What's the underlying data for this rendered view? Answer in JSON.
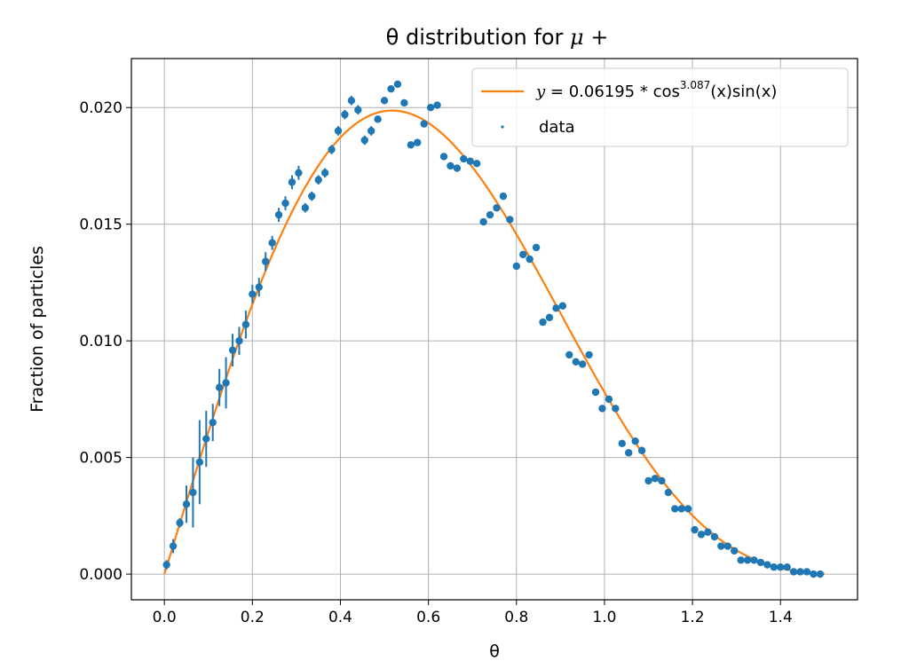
{
  "chart_data": {
    "type": "scatter",
    "title": "θ distribution for ",
    "title_symbol": "μ +",
    "xlabel": "θ",
    "ylabel": "Fraction of particles",
    "xlim": [
      -0.075,
      1.575
    ],
    "ylim": [
      -0.0011,
      0.0221
    ],
    "grid": true,
    "legend_position": "top-right",
    "xticks": [
      "0.0",
      "0.2",
      "0.4",
      "0.6",
      "0.8",
      "1.0",
      "1.2",
      "1.4"
    ],
    "yticks": [
      "0.000",
      "0.005",
      "0.010",
      "0.015",
      "0.020"
    ],
    "fit": {
      "name": "fit",
      "amplitude": 0.06195,
      "exponent": 3.087,
      "x_range": [
        0,
        1.5
      ],
      "color": "#ff7f0e",
      "legend_prefix": "y",
      "legend_eq": " = 0.06195 * cos",
      "legend_exp": "3.087",
      "legend_tail": "(x)sin(x)"
    },
    "series": [
      {
        "name": "data",
        "color": "#1f77b4",
        "x": [
          0.005,
          0.02,
          0.035,
          0.05,
          0.065,
          0.08,
          0.095,
          0.11,
          0.125,
          0.14,
          0.155,
          0.17,
          0.185,
          0.2,
          0.215,
          0.23,
          0.245,
          0.26,
          0.275,
          0.29,
          0.305,
          0.32,
          0.335,
          0.35,
          0.365,
          0.38,
          0.395,
          0.41,
          0.425,
          0.44,
          0.455,
          0.47,
          0.485,
          0.5,
          0.515,
          0.53,
          0.545,
          0.56,
          0.575,
          0.59,
          0.605,
          0.62,
          0.635,
          0.65,
          0.665,
          0.68,
          0.695,
          0.71,
          0.725,
          0.74,
          0.755,
          0.77,
          0.785,
          0.8,
          0.815,
          0.83,
          0.845,
          0.86,
          0.875,
          0.89,
          0.905,
          0.92,
          0.935,
          0.95,
          0.965,
          0.98,
          0.995,
          1.01,
          1.025,
          1.04,
          1.055,
          1.07,
          1.085,
          1.1,
          1.115,
          1.13,
          1.145,
          1.16,
          1.175,
          1.19,
          1.205,
          1.22,
          1.235,
          1.25,
          1.265,
          1.28,
          1.295,
          1.31,
          1.325,
          1.34,
          1.355,
          1.37,
          1.385,
          1.4,
          1.415,
          1.43,
          1.445,
          1.46,
          1.475,
          1.49
        ],
        "y": [
          0.0004,
          0.0012,
          0.0022,
          0.003,
          0.0035,
          0.0048,
          0.0058,
          0.0065,
          0.008,
          0.0082,
          0.0096,
          0.01,
          0.0107,
          0.012,
          0.0123,
          0.0134,
          0.0142,
          0.0154,
          0.0159,
          0.0168,
          0.0172,
          0.0157,
          0.0162,
          0.0169,
          0.0172,
          0.0182,
          0.019,
          0.0197,
          0.0203,
          0.0199,
          0.0186,
          0.019,
          0.0195,
          0.0203,
          0.0208,
          0.021,
          0.0202,
          0.0184,
          0.0185,
          0.0193,
          0.02,
          0.0201,
          0.0179,
          0.0175,
          0.0174,
          0.0178,
          0.0177,
          0.0176,
          0.0151,
          0.0154,
          0.0157,
          0.0162,
          0.0152,
          0.0132,
          0.0137,
          0.0135,
          0.014,
          0.0108,
          0.011,
          0.0114,
          0.0115,
          0.0094,
          0.0091,
          0.009,
          0.0094,
          0.0078,
          0.0071,
          0.0075,
          0.0071,
          0.0056,
          0.0052,
          0.0057,
          0.0053,
          0.004,
          0.0041,
          0.004,
          0.0035,
          0.0028,
          0.0028,
          0.0028,
          0.0019,
          0.0017,
          0.0018,
          0.0016,
          0.0012,
          0.0012,
          0.001,
          0.0006,
          0.0006,
          0.0006,
          0.0005,
          0.0004,
          0.0003,
          0.0003,
          0.0003,
          0.0001,
          0.0001,
          0.0001,
          0.0,
          0.0
        ],
        "err": [
          0.0002,
          0.0003,
          0.0002,
          0.0008,
          0.0015,
          0.0018,
          0.0012,
          0.0008,
          0.0008,
          0.0011,
          0.0007,
          0.0006,
          0.0006,
          0.0004,
          0.0004,
          0.0004,
          0.0003,
          0.0003,
          0.0003,
          0.0003,
          0.0003,
          0.0002,
          0.0002,
          0.0002,
          0.0002,
          0.0002,
          0.0002,
          0.0002,
          0.0002,
          0.0002,
          0.0002,
          0.0002,
          0.0001,
          0.0001,
          0.0001,
          0.0001,
          0.0001,
          0.0001,
          0.0001,
          0.0001,
          0.0001,
          0.0001,
          0.0001,
          0.0001,
          0.0001,
          0.0001,
          0.0001,
          0.0001,
          0.0001,
          0.0001,
          0.0001,
          0.0001,
          0.0001,
          0.0001,
          0.0001,
          0.0001,
          0.0001,
          0.0001,
          0.0001,
          0.0001,
          0.0001,
          0.0001,
          0.0001,
          0.0001,
          0.0001,
          0.0001,
          0.0001,
          0.0001,
          0.0001,
          0.0001,
          0.0001,
          0.0001,
          0.0001,
          0.0001,
          0.0001,
          0.0001,
          0.0001,
          0.0001,
          0.0001,
          0.0001,
          0.0001,
          0.0001,
          0.0001,
          0.0001,
          0.0001,
          0.0001,
          0.0001,
          0.0001,
          0.0001,
          0.0001,
          0.0001,
          0.0001,
          0.0001,
          0.0001,
          0.0001,
          0.0001,
          0.0001,
          0.0001,
          0.0001,
          0.0001
        ]
      }
    ]
  }
}
